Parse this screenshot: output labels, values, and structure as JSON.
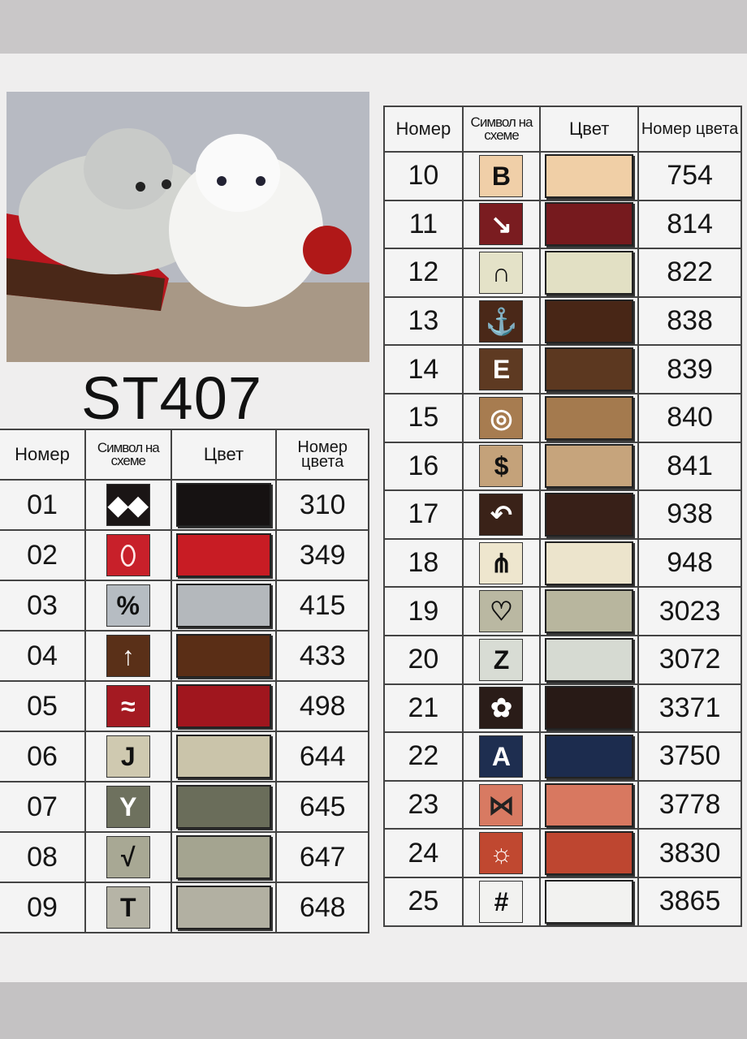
{
  "title": "ST407",
  "headers": {
    "number": "Номер",
    "symbol": "Символ на схеме",
    "color": "Цвет",
    "code": "Номер цвета"
  },
  "left_rows": [
    {
      "n": "01",
      "sym": "◆◆",
      "bg": "#1a1515",
      "fg": "#ffffff",
      "sw": "#161212",
      "code": "310"
    },
    {
      "n": "02",
      "sym": "⬯",
      "bg": "#c8202a",
      "fg": "#ffe8e8",
      "sw": "#c81c24",
      "code": "349"
    },
    {
      "n": "03",
      "sym": "%",
      "bg": "#b6bcc2",
      "fg": "#111111",
      "sw": "#b4b8bc",
      "code": "415"
    },
    {
      "n": "04",
      "sym": "↑",
      "bg": "#5a3018",
      "fg": "#ffffff",
      "sw": "#5a2e16",
      "code": "433"
    },
    {
      "n": "05",
      "sym": "≈",
      "bg": "#a41a22",
      "fg": "#ffffff",
      "sw": "#a0161e",
      "code": "498"
    },
    {
      "n": "06",
      "sym": "J",
      "bg": "#cfc9b0",
      "fg": "#111111",
      "sw": "#cac4aa",
      "code": "644"
    },
    {
      "n": "07",
      "sym": "Y",
      "bg": "#6e715e",
      "fg": "#ffffff",
      "sw": "#6a6d5a",
      "code": "645"
    },
    {
      "n": "08",
      "sym": "√",
      "bg": "#a8a894",
      "fg": "#111111",
      "sw": "#a4a490",
      "code": "647"
    },
    {
      "n": "09",
      "sym": "T",
      "bg": "#b6b4a6",
      "fg": "#111111",
      "sw": "#b2b0a2",
      "code": "648"
    }
  ],
  "right_rows": [
    {
      "n": "10",
      "sym": "B",
      "bg": "#f0cfa8",
      "fg": "#111111",
      "sw": "#f0cfa6",
      "code": "754"
    },
    {
      "n": "11",
      "sym": "↘",
      "bg": "#7a1c20",
      "fg": "#ffffff",
      "sw": "#761a1e",
      "code": "814"
    },
    {
      "n": "12",
      "sym": "∩",
      "bg": "#e4e2c8",
      "fg": "#111111",
      "sw": "#e2e0c4",
      "code": "822"
    },
    {
      "n": "13",
      "sym": "⚓",
      "bg": "#4a2818",
      "fg": "#ffffff",
      "sw": "#482616",
      "code": "838"
    },
    {
      "n": "14",
      "sym": "E",
      "bg": "#5e3a22",
      "fg": "#ffffff",
      "sw": "#5c3820",
      "code": "839"
    },
    {
      "n": "15",
      "sym": "◎",
      "bg": "#a77c50",
      "fg": "#ffffff",
      "sw": "#a47a4e",
      "code": "840"
    },
    {
      "n": "16",
      "sym": "$",
      "bg": "#c4a27a",
      "fg": "#111111",
      "sw": "#c6a47c",
      "code": "841"
    },
    {
      "n": "17",
      "sym": "↶",
      "bg": "#3a2218",
      "fg": "#ffffff",
      "sw": "#382018",
      "code": "938"
    },
    {
      "n": "18",
      "sym": "⋔",
      "bg": "#eee6ce",
      "fg": "#111111",
      "sw": "#ece4cc",
      "code": "948"
    },
    {
      "n": "19",
      "sym": "♡",
      "bg": "#bab8a2",
      "fg": "#111111",
      "sw": "#b8b69e",
      "code": "3023"
    },
    {
      "n": "20",
      "sym": "Z",
      "bg": "#d8dcd4",
      "fg": "#111111",
      "sw": "#d6dad2",
      "code": "3072"
    },
    {
      "n": "21",
      "sym": "✿",
      "bg": "#2a1c18",
      "fg": "#ffffff",
      "sw": "#281a16",
      "code": "3371"
    },
    {
      "n": "22",
      "sym": "A",
      "bg": "#1e2e50",
      "fg": "#ffffff",
      "sw": "#1c2c4e",
      "code": "3750"
    },
    {
      "n": "23",
      "sym": "⋈",
      "bg": "#d87a62",
      "fg": "#222222",
      "sw": "#d87860",
      "code": "3778"
    },
    {
      "n": "24",
      "sym": "☼",
      "bg": "#c04830",
      "fg": "#ffffff",
      "sw": "#be4630",
      "code": "3830"
    },
    {
      "n": "25",
      "sym": "#",
      "bg": "#f2f2f0",
      "fg": "#111111",
      "sw": "#f2f2f0",
      "code": "3865"
    }
  ]
}
